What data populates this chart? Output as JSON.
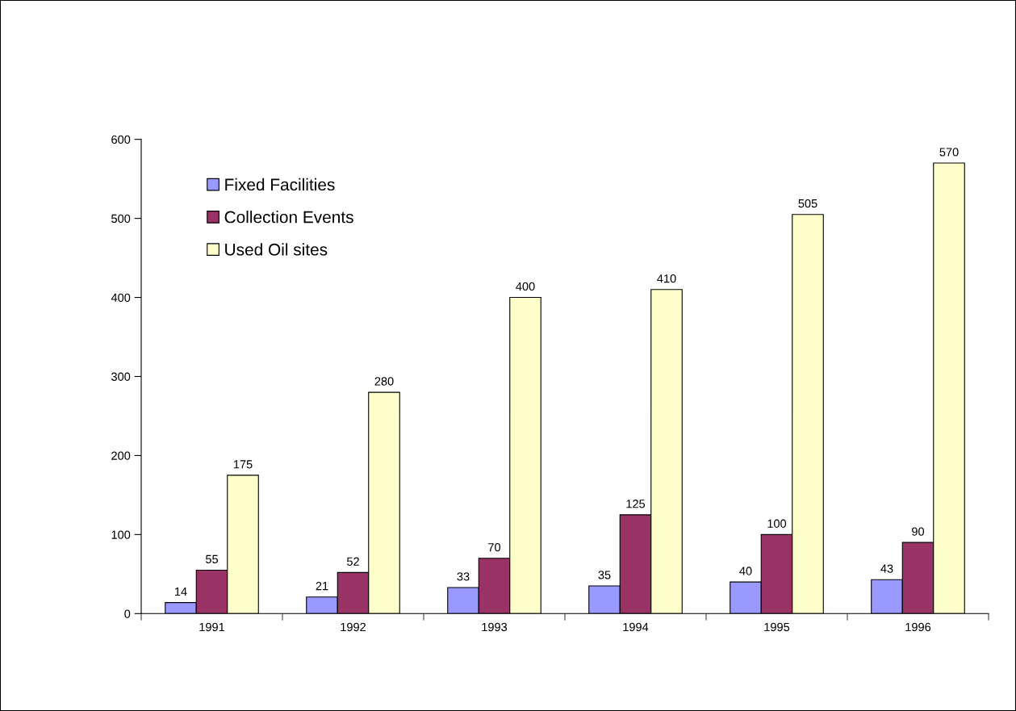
{
  "chart_data": {
    "type": "bar",
    "categories": [
      "1991",
      "1992",
      "1993",
      "1994",
      "1995",
      "1996"
    ],
    "series": [
      {
        "name": "Fixed Facilities",
        "color": "#9999ff",
        "values": [
          14,
          21,
          33,
          35,
          40,
          43
        ]
      },
      {
        "name": "Collection Events",
        "color": "#993366",
        "values": [
          55,
          52,
          70,
          125,
          100,
          90
        ]
      },
      {
        "name": "Used Oil sites",
        "color": "#ffffcc",
        "values": [
          175,
          280,
          400,
          410,
          505,
          570
        ]
      }
    ],
    "ylim": [
      0,
      600
    ],
    "yticks": [
      0,
      100,
      200,
      300,
      400,
      500,
      600
    ],
    "data_labels": true,
    "grid": false,
    "legend": "top left"
  }
}
